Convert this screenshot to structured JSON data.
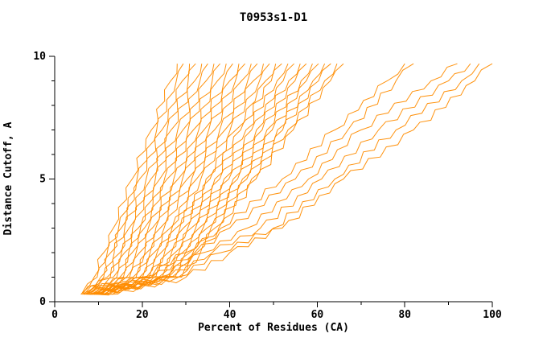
{
  "chart_data": {
    "type": "line",
    "title": "T0953s1-D1",
    "xlabel": "Percent of Residues (CA)",
    "ylabel": "Distance Cutoff, A",
    "xlim": [
      0,
      100
    ],
    "ylim": [
      0,
      10
    ],
    "x_ticks": [
      0,
      20,
      40,
      60,
      80,
      100
    ],
    "y_ticks": [
      0,
      5,
      10
    ],
    "x_minor_step": 10,
    "y_minor_step": 1,
    "grid": "off",
    "legend": "none",
    "line_color": "#ff8c00",
    "axis_color": "#000000",
    "background": "#ffffff",
    "y_anchors": [
      0.3,
      1,
      2,
      3,
      5,
      7,
      9,
      9.7
    ],
    "series": [
      [
        6.0,
        9.0,
        11.2,
        13.4,
        17.7,
        22.1,
        26.5,
        28.0
      ],
      [
        6.1,
        9.7,
        12.0,
        14.6,
        18.8,
        23.3,
        27.8,
        29.4
      ],
      [
        6.3,
        10.5,
        12.8,
        15.2,
        19.4,
        24.5,
        29.2,
        30.8
      ],
      [
        6.4,
        11.2,
        13.6,
        16.0,
        20.9,
        25.7,
        30.5,
        32.2
      ],
      [
        6.6,
        12.0,
        14.9,
        17.0,
        22.0,
        26.6,
        32.0,
        33.6
      ],
      [
        6.7,
        12.7,
        15.3,
        17.8,
        23.0,
        28.1,
        33.2,
        35.0
      ],
      [
        6.9,
        13.4,
        16.0,
        19.1,
        24.0,
        29.3,
        34.6,
        36.4
      ],
      [
        7.0,
        14.2,
        16.9,
        19.6,
        25.1,
        30.5,
        36.0,
        37.8
      ],
      [
        7.2,
        14.9,
        17.7,
        20.5,
        25.7,
        31.7,
        37.2,
        39.2
      ],
      [
        7.3,
        15.7,
        18.6,
        21.4,
        27.2,
        32.9,
        38.7,
        40.7
      ],
      [
        7.5,
        16.4,
        19.4,
        22.3,
        28.2,
        34.1,
        40.0,
        42.1
      ],
      [
        7.6,
        17.1,
        20.6,
        23.1,
        29.2,
        35.2,
        41.3,
        43.5
      ],
      [
        7.8,
        17.9,
        21.0,
        24.1,
        30.3,
        36.5,
        42.7,
        44.9
      ],
      [
        7.9,
        18.6,
        21.8,
        25.0,
        31.3,
        37.7,
        44.1,
        46.3
      ],
      [
        8.1,
        19.4,
        22.7,
        26.4,
        32.4,
        38.9,
        45.4,
        47.7
      ],
      [
        8.2,
        20.1,
        23.4,
        26.8,
        33.4,
        40.1,
        46.8,
        49.1
      ],
      [
        8.4,
        20.9,
        24.3,
        27.7,
        34.6,
        41.4,
        48.2,
        50.5
      ],
      [
        8.5,
        21.6,
        25.1,
        28.6,
        35.5,
        42.5,
        49.5,
        51.9
      ],
      [
        8.7,
        22.3,
        25.9,
        29.4,
        36.6,
        43.7,
        50.8,
        53.3
      ],
      [
        8.8,
        23.1,
        26.7,
        30.4,
        37.7,
        45.0,
        52.2,
        54.7
      ],
      [
        9.0,
        23.8,
        27.5,
        31.2,
        38.7,
        46.1,
        53.5,
        56.1
      ],
      [
        9.1,
        24.6,
        28.4,
        32.2,
        39.8,
        47.4,
        54.9,
        57.5
      ],
      [
        9.3,
        25.3,
        29.2,
        33.0,
        40.8,
        48.5,
        56.3,
        58.9
      ],
      [
        9.4,
        26.0,
        29.9,
        33.9,
        41.8,
        49.7,
        57.5,
        60.3
      ],
      [
        9.6,
        26.8,
        30.8,
        34.8,
        42.9,
        50.9,
        59.0,
        61.7
      ],
      [
        9.7,
        27.5,
        31.6,
        35.7,
        43.9,
        52.1,
        60.3,
        63.1
      ],
      [
        9.9,
        28.3,
        32.5,
        36.6,
        45.0,
        53.3,
        61.7,
        64.5
      ],
      [
        10.0,
        29.0,
        33.3,
        37.5,
        46.0,
        54.5,
        63.0,
        66.0
      ],
      [
        8.0,
        20.0,
        30.0,
        38.0,
        52.0,
        64.0,
        76.0,
        80.0
      ],
      [
        9.0,
        22.0,
        32.0,
        40.0,
        55.0,
        67.0,
        78.0,
        82.0
      ],
      [
        10.0,
        24.0,
        34.0,
        44.0,
        58.0,
        70.0,
        86.0,
        92.0
      ],
      [
        11.0,
        26.0,
        36.0,
        47.0,
        61.0,
        74.0,
        90.0,
        95.0
      ],
      [
        12.0,
        28.0,
        38.0,
        50.0,
        64.0,
        78.0,
        93.0,
        97.0
      ],
      [
        13.0,
        30.0,
        40.0,
        52.0,
        66.0,
        82.0,
        96.0,
        100.0
      ]
    ]
  }
}
